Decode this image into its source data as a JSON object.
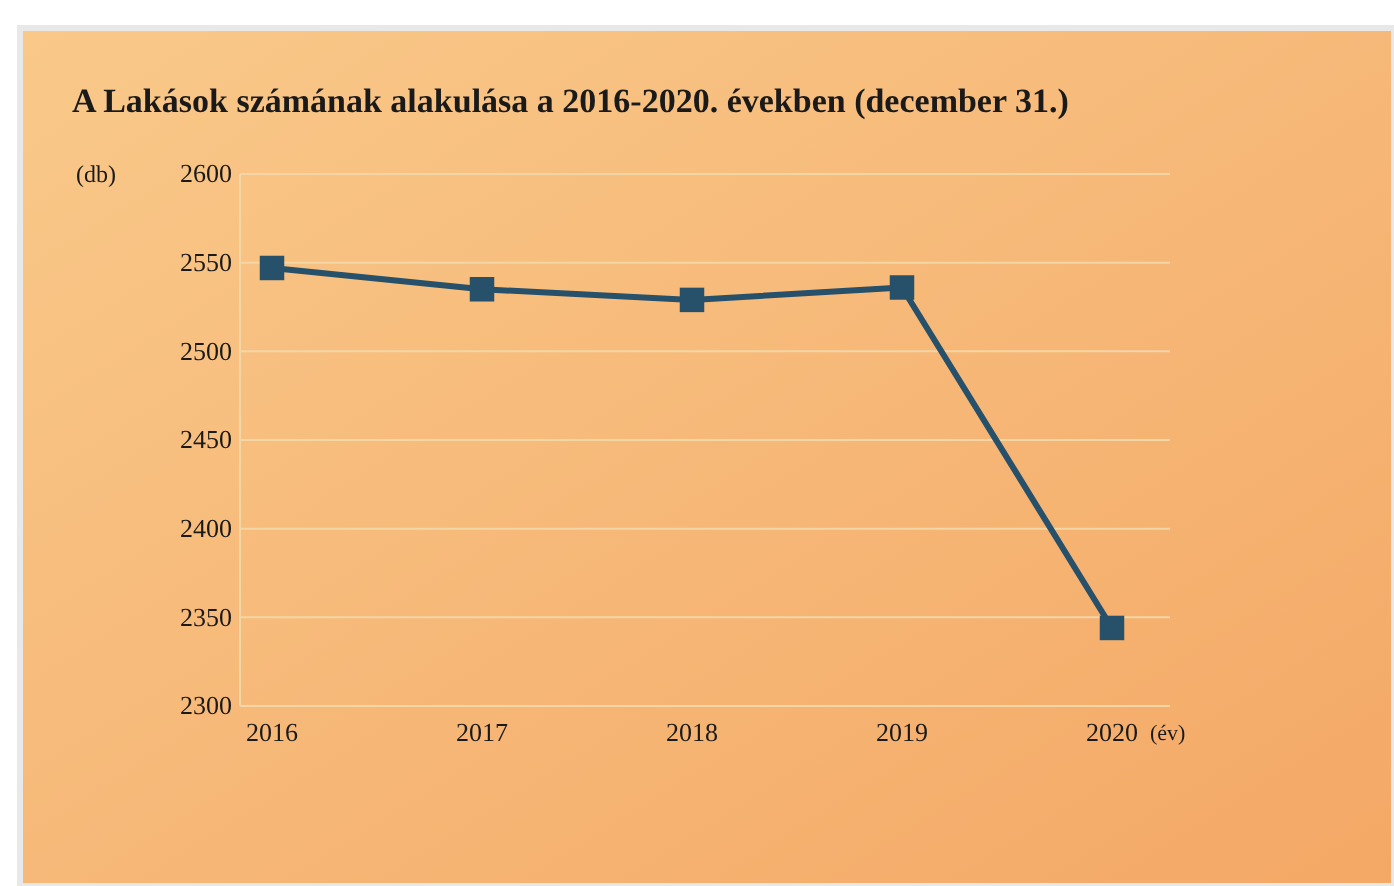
{
  "chart_data": {
    "type": "line",
    "title": "A Lakások számának alakulása a 2016-2020. években (december 31.)",
    "ylabel": "(db)",
    "xlabel": "(év)",
    "categories": [
      "2016",
      "2017",
      "2018",
      "2019",
      "2020"
    ],
    "series": [
      {
        "color": "#27506a",
        "values": [
          2547,
          2535,
          2529,
          2536,
          2344
        ]
      }
    ],
    "ylim": [
      2300,
      2600
    ],
    "yticks": [
      2300,
      2350,
      2400,
      2450,
      2500,
      2550,
      2600
    ],
    "grid": "y",
    "marker": "square",
    "line_style": "solid"
  }
}
